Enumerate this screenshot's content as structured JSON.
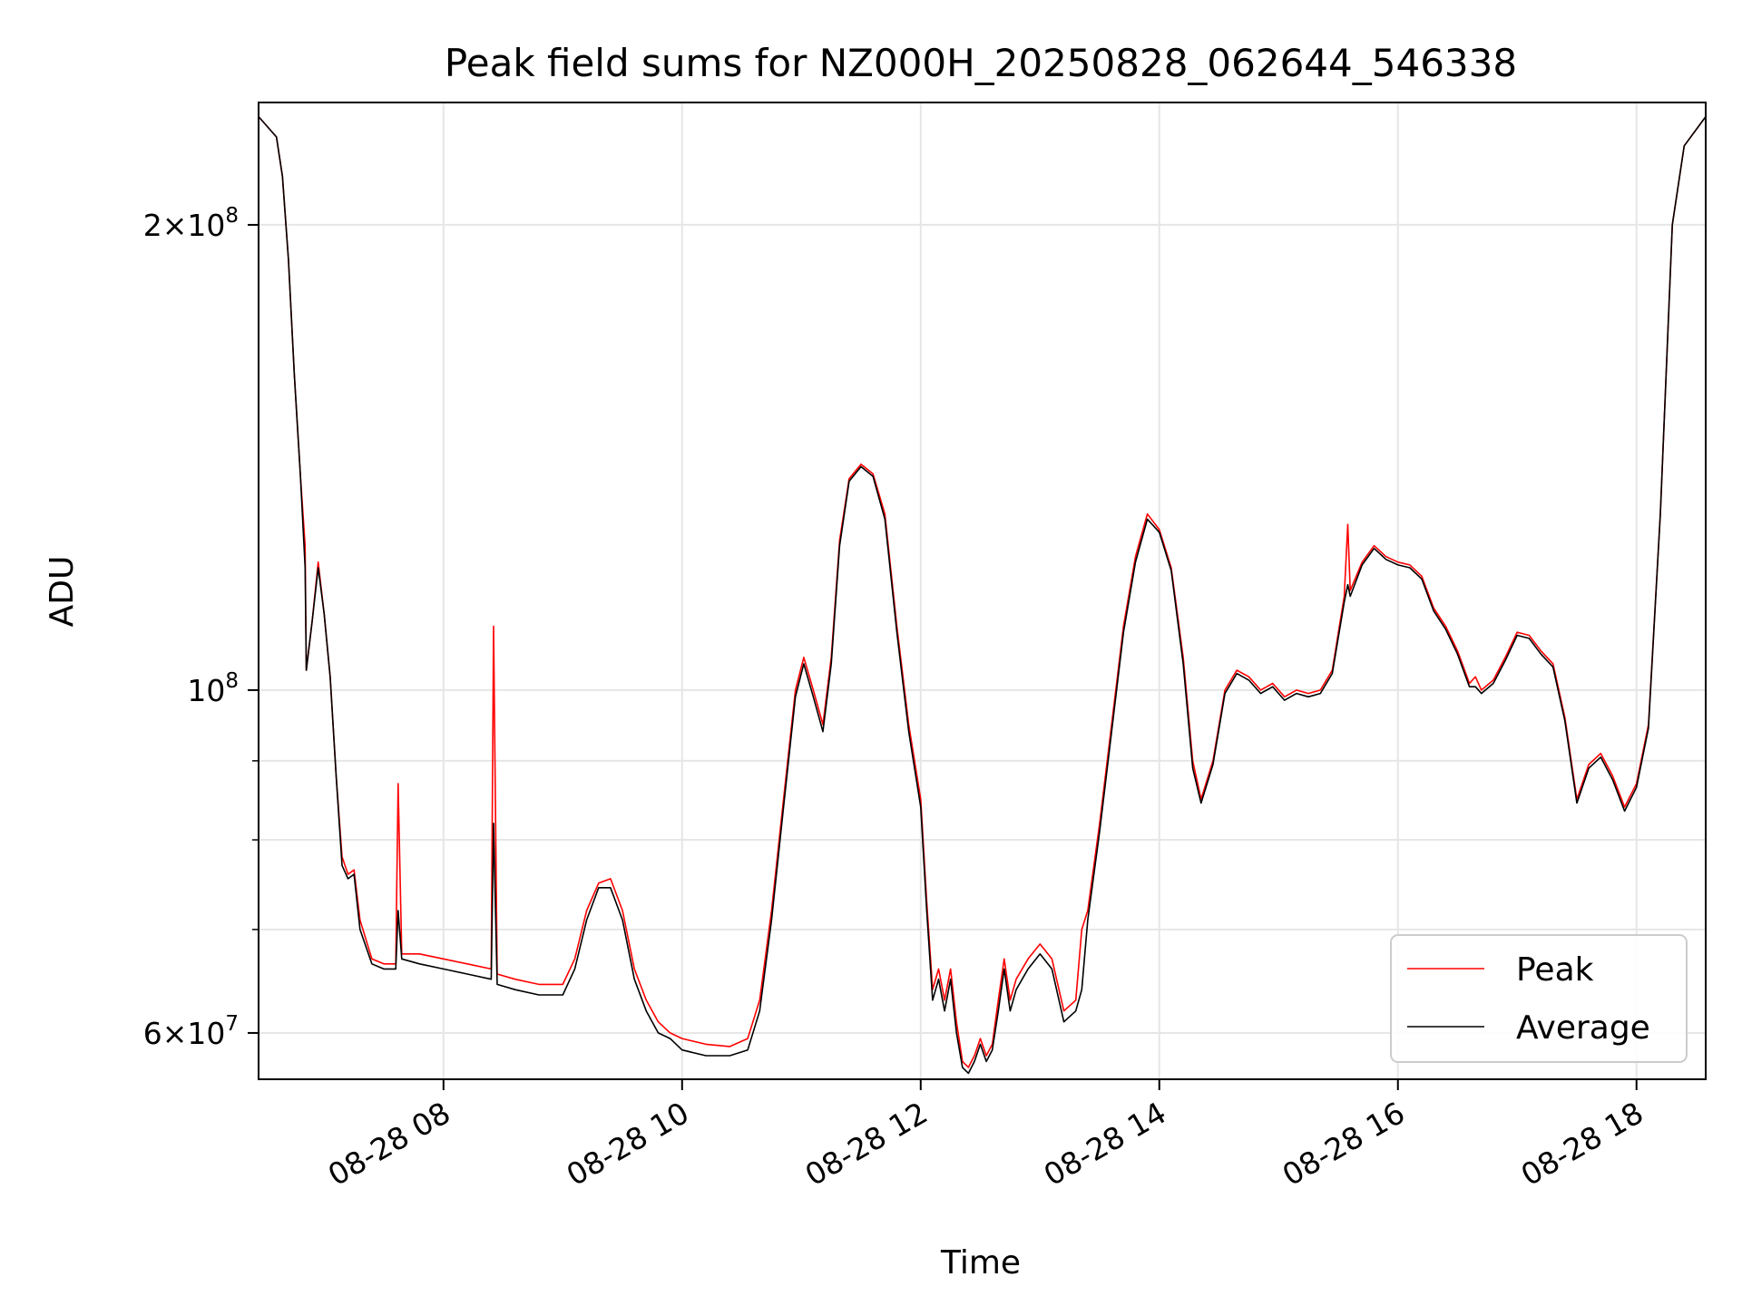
{
  "chart_data": {
    "type": "line",
    "title": "Peak field sums for NZ000H_20250828_062644_546338",
    "xlabel": "Time",
    "ylabel": "ADU",
    "x_unit": "hours of day, 2025-08-28",
    "xlim": [
      6.45,
      18.58
    ],
    "ylim": [
      56000000,
      240000000
    ],
    "yscale": "log",
    "grid": true,
    "legend": "lower right",
    "x_tick_labels": [
      {
        "x": 8,
        "label": "08-28 08"
      },
      {
        "x": 10,
        "label": "08-28 10"
      },
      {
        "x": 12,
        "label": "08-28 12"
      },
      {
        "x": 14,
        "label": "08-28 14"
      },
      {
        "x": 16,
        "label": "08-28 16"
      },
      {
        "x": 18,
        "label": "08-28 18"
      }
    ],
    "y_major_ticks": [
      {
        "value": 60000000,
        "mantissa": "6",
        "exponent": "7"
      },
      {
        "value": 100000000,
        "mantissa": "",
        "exponent": "8"
      },
      {
        "value": 200000000,
        "mantissa": "2",
        "exponent": "8"
      }
    ],
    "y_minor_ticks": [
      70000000,
      80000000,
      90000000
    ],
    "series": [
      {
        "name": "Peak",
        "color": "#ff0000",
        "points": [
          [
            6.45,
            235000000
          ],
          [
            6.6,
            228000000
          ],
          [
            6.65,
            215000000
          ],
          [
            6.7,
            190000000
          ],
          [
            6.75,
            160000000
          ],
          [
            6.8,
            138000000
          ],
          [
            6.84,
            124000000
          ],
          [
            6.85,
            103000000
          ],
          [
            6.9,
            111000000
          ],
          [
            6.95,
            121000000
          ],
          [
            7.0,
            112000000
          ],
          [
            7.05,
            102000000
          ],
          [
            7.1,
            88000000
          ],
          [
            7.15,
            78000000
          ],
          [
            7.2,
            76000000
          ],
          [
            7.25,
            76500000
          ],
          [
            7.3,
            71000000
          ],
          [
            7.4,
            67000000
          ],
          [
            7.5,
            66500000
          ],
          [
            7.6,
            66500000
          ],
          [
            7.62,
            87000000
          ],
          [
            7.65,
            67500000
          ],
          [
            7.8,
            67500000
          ],
          [
            8.0,
            67000000
          ],
          [
            8.2,
            66500000
          ],
          [
            8.4,
            66000000
          ],
          [
            8.42,
            110000000
          ],
          [
            8.45,
            65500000
          ],
          [
            8.6,
            65000000
          ],
          [
            8.8,
            64500000
          ],
          [
            9.0,
            64500000
          ],
          [
            9.1,
            67000000
          ],
          [
            9.2,
            72000000
          ],
          [
            9.3,
            75000000
          ],
          [
            9.4,
            75500000
          ],
          [
            9.5,
            72000000
          ],
          [
            9.6,
            66000000
          ],
          [
            9.7,
            63000000
          ],
          [
            9.8,
            61000000
          ],
          [
            9.9,
            60000000
          ],
          [
            10.0,
            59500000
          ],
          [
            10.2,
            59000000
          ],
          [
            10.4,
            58800000
          ],
          [
            10.55,
            59500000
          ],
          [
            10.65,
            63000000
          ],
          [
            10.75,
            72000000
          ],
          [
            10.85,
            85000000
          ],
          [
            10.95,
            100000000
          ],
          [
            11.02,
            105000000
          ],
          [
            11.1,
            100000000
          ],
          [
            11.18,
            95000000
          ],
          [
            11.25,
            105000000
          ],
          [
            11.32,
            125000000
          ],
          [
            11.4,
            137000000
          ],
          [
            11.5,
            140000000
          ],
          [
            11.6,
            138000000
          ],
          [
            11.7,
            130000000
          ],
          [
            11.8,
            110000000
          ],
          [
            11.9,
            95000000
          ],
          [
            12.0,
            85000000
          ],
          [
            12.05,
            73000000
          ],
          [
            12.1,
            64000000
          ],
          [
            12.15,
            66000000
          ],
          [
            12.2,
            63000000
          ],
          [
            12.25,
            66000000
          ],
          [
            12.3,
            61000000
          ],
          [
            12.35,
            57500000
          ],
          [
            12.4,
            57000000
          ],
          [
            12.45,
            58000000
          ],
          [
            12.5,
            59500000
          ],
          [
            12.55,
            58000000
          ],
          [
            12.6,
            59000000
          ],
          [
            12.65,
            63000000
          ],
          [
            12.7,
            67000000
          ],
          [
            12.75,
            63000000
          ],
          [
            12.8,
            65000000
          ],
          [
            12.9,
            67000000
          ],
          [
            13.0,
            68500000
          ],
          [
            13.1,
            67000000
          ],
          [
            13.2,
            62000000
          ],
          [
            13.3,
            63000000
          ],
          [
            13.35,
            70000000
          ],
          [
            13.4,
            72000000
          ],
          [
            13.5,
            82000000
          ],
          [
            13.6,
            95000000
          ],
          [
            13.7,
            110000000
          ],
          [
            13.8,
            122000000
          ],
          [
            13.9,
            130000000
          ],
          [
            14.0,
            127000000
          ],
          [
            14.1,
            120000000
          ],
          [
            14.2,
            105000000
          ],
          [
            14.28,
            90000000
          ],
          [
            14.35,
            85000000
          ],
          [
            14.45,
            90000000
          ],
          [
            14.55,
            100000000
          ],
          [
            14.65,
            103000000
          ],
          [
            14.75,
            102000000
          ],
          [
            14.85,
            100000000
          ],
          [
            14.95,
            101000000
          ],
          [
            15.05,
            99000000
          ],
          [
            15.15,
            100000000
          ],
          [
            15.25,
            99500000
          ],
          [
            15.35,
            100000000
          ],
          [
            15.45,
            103000000
          ],
          [
            15.55,
            115000000
          ],
          [
            15.58,
            128000000
          ],
          [
            15.6,
            116000000
          ],
          [
            15.7,
            121000000
          ],
          [
            15.8,
            124000000
          ],
          [
            15.9,
            122000000
          ],
          [
            16.0,
            121000000
          ],
          [
            16.1,
            120500000
          ],
          [
            16.2,
            118500000
          ],
          [
            16.3,
            113000000
          ],
          [
            16.4,
            110000000
          ],
          [
            16.5,
            106000000
          ],
          [
            16.6,
            101000000
          ],
          [
            16.65,
            102000000
          ],
          [
            16.7,
            100000000
          ],
          [
            16.8,
            101500000
          ],
          [
            16.9,
            105000000
          ],
          [
            17.0,
            109000000
          ],
          [
            17.1,
            108500000
          ],
          [
            17.2,
            106000000
          ],
          [
            17.3,
            104000000
          ],
          [
            17.4,
            96000000
          ],
          [
            17.5,
            85000000
          ],
          [
            17.6,
            89500000
          ],
          [
            17.7,
            91000000
          ],
          [
            17.8,
            88000000
          ],
          [
            17.9,
            84000000
          ],
          [
            18.0,
            87000000
          ],
          [
            18.1,
            95000000
          ],
          [
            18.2,
            130000000
          ],
          [
            18.3,
            200000000
          ],
          [
            18.4,
            225000000
          ],
          [
            18.58,
            235000000
          ]
        ]
      },
      {
        "name": "Average",
        "color": "#000000",
        "points": [
          [
            6.45,
            235000000
          ],
          [
            6.6,
            228000000
          ],
          [
            6.65,
            215000000
          ],
          [
            6.7,
            190000000
          ],
          [
            6.75,
            160000000
          ],
          [
            6.8,
            138000000
          ],
          [
            6.84,
            120000000
          ],
          [
            6.85,
            103000000
          ],
          [
            6.9,
            111000000
          ],
          [
            6.95,
            120000000
          ],
          [
            7.0,
            112000000
          ],
          [
            7.05,
            102000000
          ],
          [
            7.1,
            88000000
          ],
          [
            7.15,
            77000000
          ],
          [
            7.2,
            75500000
          ],
          [
            7.25,
            76000000
          ],
          [
            7.3,
            70000000
          ],
          [
            7.4,
            66500000
          ],
          [
            7.5,
            66000000
          ],
          [
            7.6,
            66000000
          ],
          [
            7.62,
            72000000
          ],
          [
            7.65,
            67000000
          ],
          [
            7.8,
            66500000
          ],
          [
            8.0,
            66000000
          ],
          [
            8.2,
            65500000
          ],
          [
            8.4,
            65000000
          ],
          [
            8.42,
            82000000
          ],
          [
            8.45,
            64500000
          ],
          [
            8.6,
            64000000
          ],
          [
            8.8,
            63500000
          ],
          [
            9.0,
            63500000
          ],
          [
            9.1,
            66000000
          ],
          [
            9.2,
            71000000
          ],
          [
            9.3,
            74500000
          ],
          [
            9.4,
            74500000
          ],
          [
            9.5,
            71000000
          ],
          [
            9.6,
            65000000
          ],
          [
            9.7,
            62000000
          ],
          [
            9.8,
            60000000
          ],
          [
            9.9,
            59500000
          ],
          [
            10.0,
            58500000
          ],
          [
            10.2,
            58000000
          ],
          [
            10.4,
            58000000
          ],
          [
            10.55,
            58500000
          ],
          [
            10.65,
            62000000
          ],
          [
            10.75,
            71000000
          ],
          [
            10.85,
            84000000
          ],
          [
            10.95,
            99000000
          ],
          [
            11.02,
            104000000
          ],
          [
            11.1,
            99000000
          ],
          [
            11.18,
            94000000
          ],
          [
            11.25,
            104000000
          ],
          [
            11.32,
            124000000
          ],
          [
            11.4,
            136500000
          ],
          [
            11.5,
            139500000
          ],
          [
            11.6,
            137500000
          ],
          [
            11.7,
            129000000
          ],
          [
            11.8,
            109000000
          ],
          [
            11.9,
            94000000
          ],
          [
            12.0,
            84000000
          ],
          [
            12.05,
            72000000
          ],
          [
            12.1,
            63000000
          ],
          [
            12.15,
            65000000
          ],
          [
            12.2,
            62000000
          ],
          [
            12.25,
            65000000
          ],
          [
            12.3,
            60000000
          ],
          [
            12.35,
            57000000
          ],
          [
            12.4,
            56500000
          ],
          [
            12.45,
            57500000
          ],
          [
            12.5,
            59000000
          ],
          [
            12.55,
            57500000
          ],
          [
            12.6,
            58500000
          ],
          [
            12.65,
            62000000
          ],
          [
            12.7,
            66000000
          ],
          [
            12.75,
            62000000
          ],
          [
            12.8,
            64000000
          ],
          [
            12.9,
            66000000
          ],
          [
            13.0,
            67500000
          ],
          [
            13.1,
            66000000
          ],
          [
            13.2,
            61000000
          ],
          [
            13.3,
            62000000
          ],
          [
            13.35,
            64000000
          ],
          [
            13.4,
            71000000
          ],
          [
            13.5,
            81000000
          ],
          [
            13.6,
            94000000
          ],
          [
            13.7,
            109000000
          ],
          [
            13.8,
            121000000
          ],
          [
            13.9,
            129000000
          ],
          [
            14.0,
            126500000
          ],
          [
            14.1,
            119500000
          ],
          [
            14.2,
            104000000
          ],
          [
            14.28,
            89000000
          ],
          [
            14.35,
            84500000
          ],
          [
            14.45,
            89500000
          ],
          [
            14.55,
            99500000
          ],
          [
            14.65,
            102500000
          ],
          [
            14.75,
            101500000
          ],
          [
            14.85,
            99500000
          ],
          [
            14.95,
            100500000
          ],
          [
            15.05,
            98500000
          ],
          [
            15.15,
            99500000
          ],
          [
            15.25,
            99000000
          ],
          [
            15.35,
            99500000
          ],
          [
            15.45,
            102500000
          ],
          [
            15.55,
            114000000
          ],
          [
            15.58,
            117000000
          ],
          [
            15.6,
            115000000
          ],
          [
            15.7,
            120500000
          ],
          [
            15.8,
            123500000
          ],
          [
            15.9,
            121500000
          ],
          [
            16.0,
            120500000
          ],
          [
            16.1,
            120000000
          ],
          [
            16.2,
            118000000
          ],
          [
            16.3,
            112500000
          ],
          [
            16.4,
            109500000
          ],
          [
            16.5,
            105500000
          ],
          [
            16.6,
            100500000
          ],
          [
            16.65,
            100500000
          ],
          [
            16.7,
            99500000
          ],
          [
            16.8,
            101000000
          ],
          [
            16.9,
            104500000
          ],
          [
            17.0,
            108500000
          ],
          [
            17.1,
            108000000
          ],
          [
            17.2,
            105500000
          ],
          [
            17.3,
            103500000
          ],
          [
            17.4,
            95500000
          ],
          [
            17.5,
            84500000
          ],
          [
            17.6,
            89000000
          ],
          [
            17.7,
            90500000
          ],
          [
            17.8,
            87500000
          ],
          [
            17.9,
            83500000
          ],
          [
            18.0,
            86500000
          ],
          [
            18.1,
            94500000
          ],
          [
            18.2,
            130000000
          ],
          [
            18.3,
            200000000
          ],
          [
            18.4,
            225000000
          ],
          [
            18.58,
            235000000
          ]
        ]
      }
    ]
  }
}
